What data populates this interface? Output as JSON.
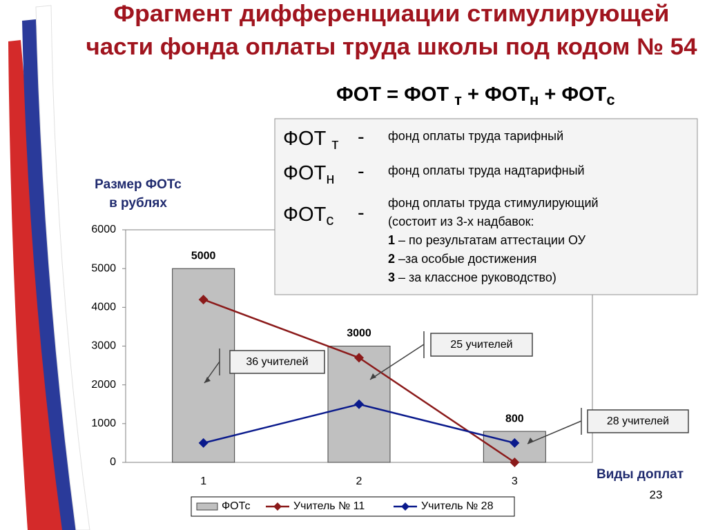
{
  "title": [
    "Фрагмент дифференциации стимулирующей",
    "части фонда оплаты труда школы под кодом № 54"
  ],
  "formula": [
    "ФОТ = ФОТ ",
    "т",
    " + ФОТ",
    "н",
    " + ФОТ",
    "с"
  ],
  "definitions": [
    {
      "term": "ФОТ ",
      "sub": "т",
      "dash": "-",
      "lines": [
        "фонд оплаты труда тарифный"
      ]
    },
    {
      "term": "ФОТ",
      "sub": "н",
      "dash": "-",
      "lines": [
        "фонд оплаты труда надтарифный"
      ]
    },
    {
      "term": "ФОТ",
      "sub": "с",
      "dash": "-",
      "lines": [
        "фонд оплаты труда стимулирующий",
        "(состоит из 3-х надбавок:"
      ],
      "items": [
        {
          "num": "1",
          "text": " – по результатам аттестации ОУ"
        },
        {
          "num": "2",
          "text": " –за особые достижения"
        },
        {
          "num": "3",
          "text": " – за классное руководство)"
        }
      ]
    }
  ],
  "page_number": "23",
  "chart_data": {
    "type": "bar",
    "y_label": [
      "Размер ФОТс",
      "в рублях"
    ],
    "x_label": "Виды доплат",
    "categories": [
      "1",
      "2",
      "3"
    ],
    "ylim": [
      0,
      6000
    ],
    "yticks": [
      0,
      1000,
      2000,
      3000,
      4000,
      5000,
      6000
    ],
    "series": [
      {
        "name": "ФОТс",
        "type": "bar",
        "color": "#c0c0c0",
        "values": [
          5000,
          3000,
          800
        ]
      },
      {
        "name": "Учитель № 11",
        "type": "line",
        "color": "#8b1a1a",
        "values": [
          4200,
          2700,
          0
        ]
      },
      {
        "name": "Учитель № 28",
        "type": "line",
        "color": "#0a1a8c",
        "values": [
          500,
          1500,
          500
        ]
      }
    ],
    "annotations": [
      "36 учителей",
      "25 учителей",
      "28 учителей"
    ]
  }
}
